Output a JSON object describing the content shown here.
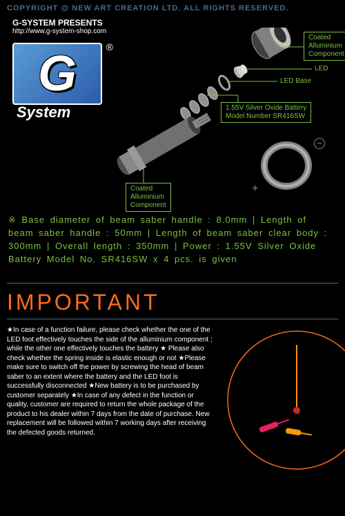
{
  "copyright": "COPYRIGHT @ NEW ART CREATION LTD. ALL RIGHTS RESERVED.",
  "presenter": "G-SYSTEM PRESENTS",
  "url": "http://www.g-system-shop.com",
  "logo_letter": "G",
  "logo_reg": "®",
  "logo_text": "System",
  "labels": {
    "comp_top": "Coated\nAlluminium\nComponent",
    "led": "LED",
    "led_base": "LED Base",
    "battery": "1.55V Silver Oxide Battery\nModel Number SR416SW",
    "comp_bottom": "Coated\nAlluminium\nComponent"
  },
  "plus": "+",
  "minus": "−",
  "specs": "※ Base diameter of beam saber handle : 8.0mm | Length of beam saber handle : 50mm | Length of beam saber clear body : 300mm | Overall length : 350mm | Power : 1.55V Silver Oxide Battery Model No. SR416SW x 4 pcs. is given",
  "important": "IMPORTANT",
  "notes": "★In case of a function failure, please check whether the one of the LED foot effectively touches the side of the alluminium component ; while the other one effectively touches the battery ★ Please also check whether the spring inside is elastic enough or not ★Please make sure to switch off the power by screwing the head of beam saber to an extent where the battery and the LED foot is successfully disconnected ★New battery is to be purchased by customer separately ★In case of any defect in the function or quality, customer are required to return the whole package of the product to his dealer within 7 days from the date of purchase. New replacement will be followed within 7 working days after receiving the defected goods returned.",
  "colors": {
    "accent_green": "#7dc242",
    "accent_orange": "#ff6b1a",
    "accent_blue": "#4a6b8a",
    "component_light": "#d0d0d0",
    "component_dark": "#606060",
    "pink_part": "#e91e63",
    "orange_part": "#ff9800"
  }
}
